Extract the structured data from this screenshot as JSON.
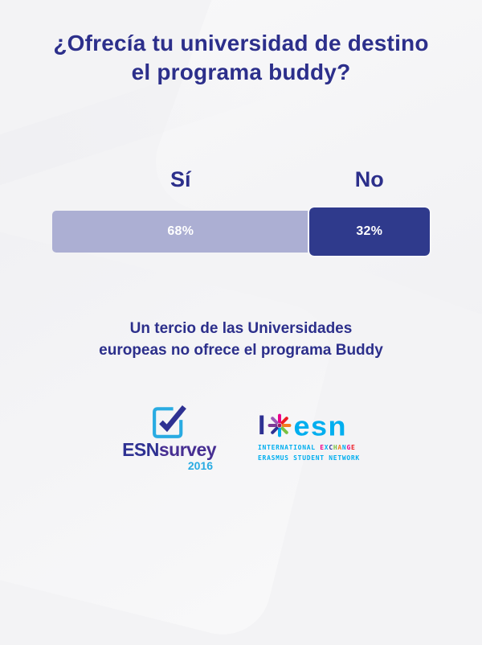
{
  "title": {
    "lines": [
      "¿Ofrecía tu universidad de destino",
      "el programa buddy?"
    ]
  },
  "chart_data": {
    "type": "bar",
    "orientation": "horizontal_stacked",
    "title": "¿Ofrecía tu universidad de destino el programa buddy?",
    "categories": [
      "Sí",
      "No"
    ],
    "values": [
      68,
      32
    ],
    "value_labels": [
      "68%",
      "32%"
    ],
    "colors": [
      "#ACAFD3",
      "#2F3A8C"
    ],
    "value_label_color": "#FFFFFF",
    "legend": "none",
    "axes": "none",
    "annotation": "Un tercio de las Universidades europeas no ofrece el programa Buddy"
  },
  "bar": {
    "label_si": "Sí",
    "label_no": "No",
    "value_si": "68%",
    "value_no": "32%"
  },
  "statement": {
    "lines": [
      "Un tercio de las Universidades",
      "europeas no ofrece el programa Buddy"
    ]
  },
  "footer": {
    "esnsurvey_logo": {
      "checkbox_icon": "checked-checkbox",
      "name_part1": "ESN",
      "name_part2": "survey",
      "year": "2016"
    },
    "esn_logo": {
      "mark_i": "I",
      "star_icon": "esn-star",
      "wordmark": "esn",
      "tagline_word1": "INTERNATIONAL ",
      "tagline_exchange_letters": [
        {
          "ch": "E",
          "color": "#EC008C"
        },
        {
          "ch": "X",
          "color": "#00AEEF"
        },
        {
          "ch": "C",
          "color": "#2E3192"
        },
        {
          "ch": "H",
          "color": "#7AC143"
        },
        {
          "ch": "A",
          "color": "#F47B20"
        },
        {
          "ch": "N",
          "color": "#00AEEF"
        },
        {
          "ch": "G",
          "color": "#EC008C"
        },
        {
          "ch": "E",
          "color": "#ED1C24"
        }
      ],
      "tagline_line2": "ERASMUS STUDENT NETWORK"
    }
  },
  "colors": {
    "background": "#F3F3F5",
    "navy_text": "#2C2F8B",
    "bar_light": "#ACAFD3",
    "bar_dark": "#2F3A8C",
    "esn_cyan": "#00AEEF",
    "esn_dark_blue": "#2E3192",
    "survey_purple": "#472F92",
    "survey_light_blue": "#29ABE2"
  }
}
